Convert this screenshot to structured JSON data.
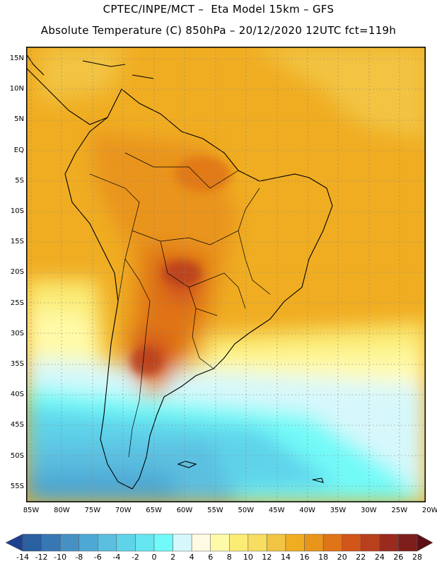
{
  "header": {
    "line1": "CPTEC/INPE/MCT –  Eta Model 15km – GFS",
    "line2": "Absolute Temperature (C) 850hPa – 20/12/2020 12UTC fct=119h"
  },
  "map": {
    "lat_labels": [
      "15N",
      "10N",
      "5N",
      "EQ",
      "5S",
      "10S",
      "15S",
      "20S",
      "25S",
      "30S",
      "35S",
      "40S",
      "45S",
      "50S",
      "55S"
    ],
    "lon_labels": [
      "85W",
      "80W",
      "75W",
      "70W",
      "65W",
      "60W",
      "55W",
      "50W",
      "45W",
      "40W",
      "35W",
      "30W",
      "25W",
      "20W"
    ],
    "lon_range": [
      -85,
      -20
    ],
    "lat_range": [
      -57.5,
      16.5
    ]
  },
  "colorbar": {
    "levels": [
      "-14",
      "-12",
      "-10",
      "-8",
      "-6",
      "-4",
      "-2",
      "0",
      "2",
      "4",
      "6",
      "8",
      "10",
      "12",
      "14",
      "16",
      "18",
      "20",
      "22",
      "24",
      "26",
      "28"
    ],
    "colors": [
      "#1f3f8f",
      "#2a5fa0",
      "#3778b4",
      "#4690c4",
      "#4ea8d4",
      "#5bbfe0",
      "#5fd3ea",
      "#66e6f0",
      "#72faf8",
      "#d7f8fb",
      "#fffbe2",
      "#fffaa8",
      "#fbec76",
      "#f7dd60",
      "#f2c443",
      "#f0ad22",
      "#e9941a",
      "#e07418",
      "#d2551a",
      "#b8401c",
      "#9a2a1d",
      "#7d1e1a",
      "#5c0f16"
    ]
  }
}
